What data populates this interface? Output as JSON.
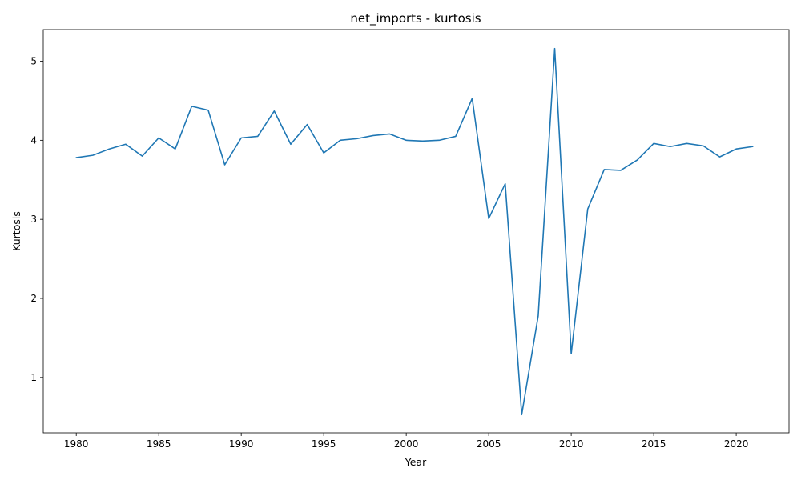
{
  "chart_data": {
    "type": "line",
    "title": "net_imports - kurtosis",
    "xlabel": "Year",
    "ylabel": "Kurtosis",
    "xlim": [
      1978,
      2023.2
    ],
    "ylim": [
      0.3,
      5.4
    ],
    "xticks": [
      1980,
      1985,
      1990,
      1995,
      2000,
      2005,
      2010,
      2015,
      2020
    ],
    "xtick_labels": [
      "1980",
      "1985",
      "1990",
      "1995",
      "2000",
      "2005",
      "2010",
      "2015",
      "2020"
    ],
    "yticks": [
      1,
      2,
      3,
      4,
      5
    ],
    "ytick_labels": [
      "1",
      "2",
      "3",
      "4",
      "5"
    ],
    "grid": false,
    "line_color": "#1f77b4",
    "x": [
      1980,
      1981,
      1982,
      1983,
      1984,
      1985,
      1986,
      1987,
      1988,
      1989,
      1990,
      1991,
      1992,
      1993,
      1994,
      1995,
      1996,
      1997,
      1998,
      1999,
      2000,
      2001,
      2002,
      2003,
      2004,
      2005,
      2006,
      2007,
      2008,
      2009,
      2010,
      2011,
      2012,
      2013,
      2014,
      2015,
      2016,
      2017,
      2018,
      2019,
      2020,
      2021
    ],
    "values": [
      3.78,
      3.81,
      3.89,
      3.95,
      3.8,
      4.03,
      3.89,
      4.43,
      4.38,
      3.69,
      4.03,
      4.05,
      4.37,
      3.95,
      4.2,
      3.84,
      4.0,
      4.02,
      4.06,
      4.08,
      4.0,
      3.99,
      4.0,
      4.05,
      4.53,
      3.01,
      3.45,
      0.53,
      1.78,
      5.16,
      1.3,
      3.13,
      3.63,
      3.62,
      3.75,
      3.96,
      3.92,
      3.96,
      3.93,
      3.79,
      3.89,
      3.92
    ]
  }
}
